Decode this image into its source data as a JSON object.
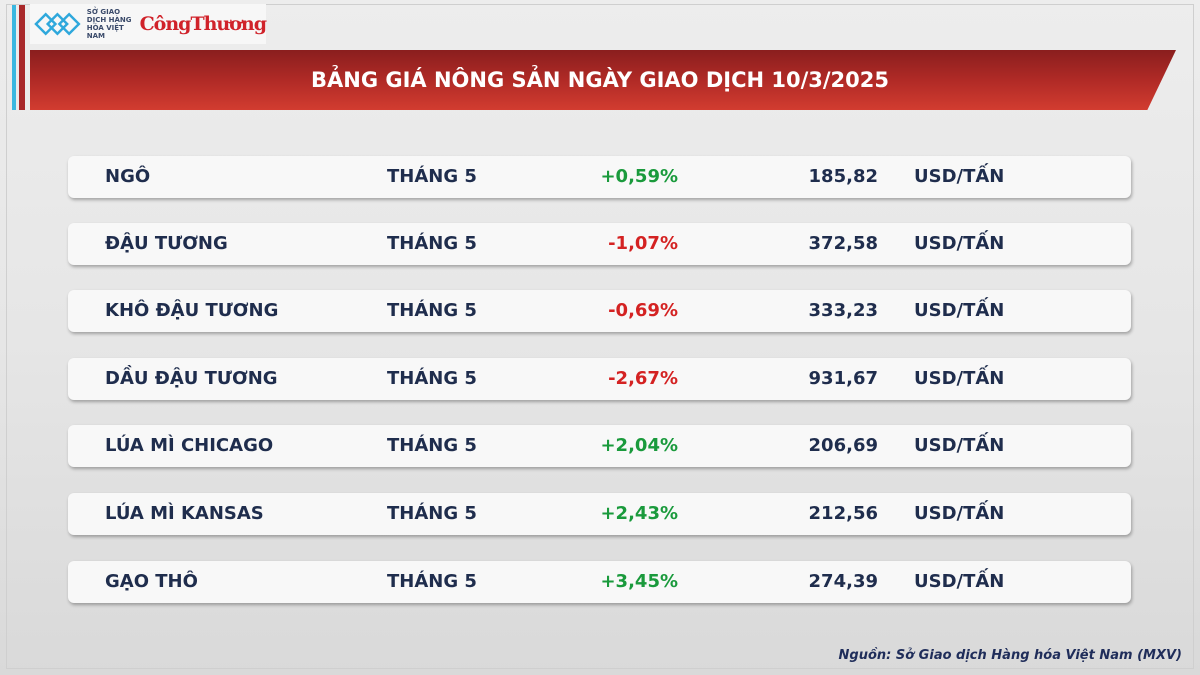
{
  "logo": {
    "mxv_text": "SỞ GIAO DỊCH HÀNG HÓA VIỆT NAM",
    "brand": "CôngThương"
  },
  "title": "BẢNG GIÁ NÔNG SẢN NGÀY GIAO DỊCH 10/3/2025",
  "colors": {
    "up": "#1a9a3c",
    "down": "#d42222",
    "banner": "#b02a26"
  },
  "rows": [
    {
      "name": "NGÔ",
      "month": "THÁNG 5",
      "change": "+0,59%",
      "direction": "up",
      "price": "185,82",
      "unit": "USD/TẤN"
    },
    {
      "name": "ĐẬU TƯƠNG",
      "month": "THÁNG 5",
      "change": "-1,07%",
      "direction": "down",
      "price": "372,58",
      "unit": "USD/TẤN"
    },
    {
      "name": "KHÔ ĐẬU TƯƠNG",
      "month": "THÁNG 5",
      "change": "-0,69%",
      "direction": "down",
      "price": "333,23",
      "unit": "USD/TẤN"
    },
    {
      "name": "DẦU ĐẬU TƯƠNG",
      "month": "THÁNG 5",
      "change": "-2,67%",
      "direction": "down",
      "price": "931,67",
      "unit": "USD/TẤN"
    },
    {
      "name": "LÚA MÌ CHICAGO",
      "month": "THÁNG 5",
      "change": "+2,04%",
      "direction": "up",
      "price": "206,69",
      "unit": "USD/TẤN"
    },
    {
      "name": "LÚA MÌ KANSAS",
      "month": "THÁNG 5",
      "change": "+2,43%",
      "direction": "up",
      "price": "212,56",
      "unit": "USD/TẤN"
    },
    {
      "name": "GẠO THÔ",
      "month": "THÁNG 5",
      "change": "+3,45%",
      "direction": "up",
      "price": "274,39",
      "unit": "USD/TẤN"
    }
  ],
  "source": "Nguồn: Sở Giao dịch Hàng hóa Việt Nam (MXV)"
}
